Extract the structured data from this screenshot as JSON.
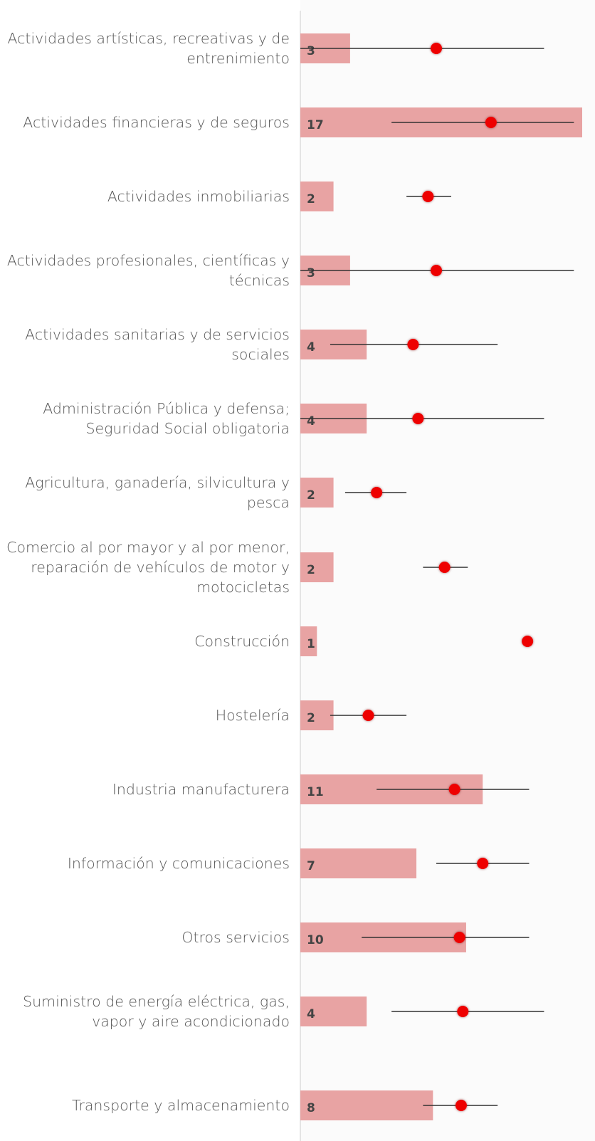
{
  "chart_data": {
    "type": "bar",
    "orientation": "horizontal",
    "categories": [
      "Actividades artísticas, recreativas y de entrenimiento",
      "Actividades financieras y de seguros",
      "Actividades inmobiliarias",
      "Actividades profesionales, científicas y técnicas",
      "Actividades sanitarias y de servicios sociales",
      "Administración Pública y defensa; Seguridad Social obligatoria",
      "Agricultura, ganadería, silvicultura y pesca",
      "Comercio al por mayor y al por menor, reparación de vehículos de motor y motocicletas",
      "Construcción",
      "Hostelería",
      "Industria manufacturera",
      "Información y comunicaciones",
      "Otros servicios",
      "Suministro de energía eléctrica, gas, vapor y aire acondicionado",
      "Transporte y almacenamiento"
    ],
    "values": [
      3,
      17,
      2,
      3,
      4,
      4,
      2,
      2,
      1,
      2,
      11,
      7,
      10,
      4,
      8
    ],
    "color": "#e8a3a3",
    "points": {
      "color": "#ee0000",
      "values": [
        8.2,
        11.5,
        7.7,
        8.2,
        6.8,
        7.1,
        4.6,
        8.7,
        13.7,
        4.1,
        9.3,
        11.0,
        9.6,
        9.8,
        9.7
      ],
      "low": [
        0,
        5.5,
        6.4,
        0,
        1.8,
        0,
        2.7,
        7.4,
        null,
        1.8,
        4.6,
        8.2,
        3.7,
        5.5,
        7.4
      ],
      "high": [
        14.7,
        16.5,
        9.1,
        16.5,
        11.9,
        14.7,
        6.4,
        10.1,
        null,
        6.4,
        13.8,
        13.8,
        13.8,
        14.7,
        11.9
      ]
    },
    "xlim": [
      0,
      17
    ]
  }
}
